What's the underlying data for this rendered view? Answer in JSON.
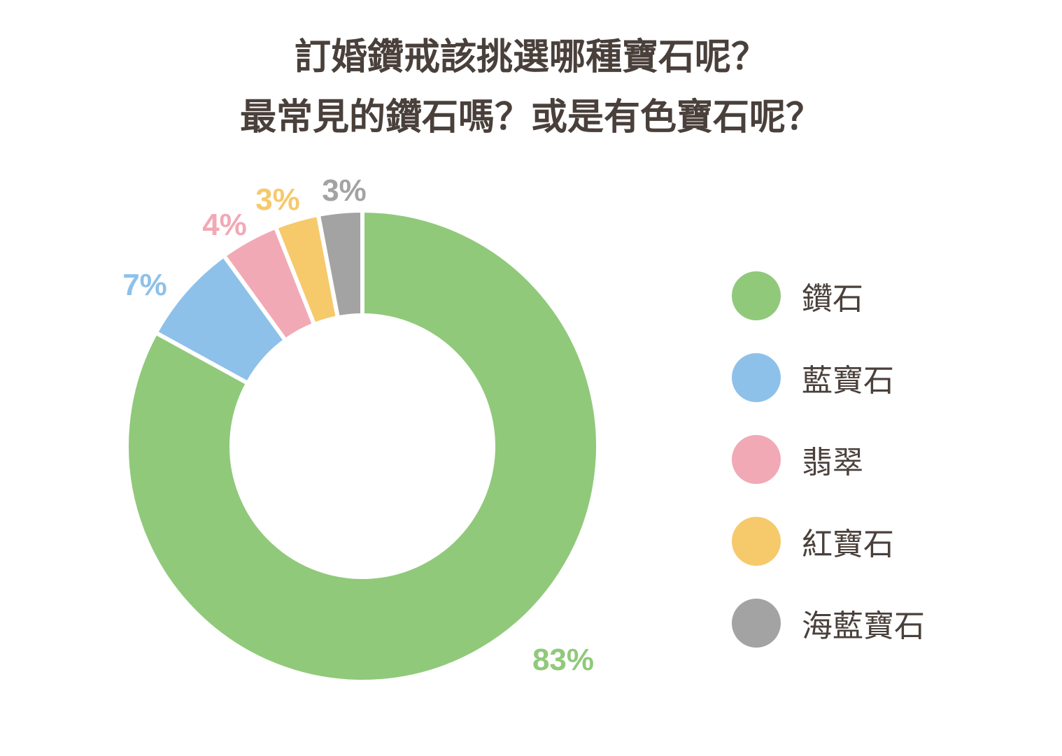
{
  "title": {
    "line1": "訂婚鑽戒該挑選哪種寶石呢？",
    "line2": "最常見的鑽石嗎？或是有色寶石呢？"
  },
  "chart_data": {
    "type": "pie",
    "variant": "donut",
    "title": "訂婚鑽戒該挑選哪種寶石呢？最常見的鑽石嗎？或是有色寶石呢？",
    "categories": [
      "鑽石",
      "藍寶石",
      "翡翠",
      "紅寶石",
      "海藍寶石"
    ],
    "values": [
      83,
      7,
      4,
      3,
      3
    ],
    "labels": [
      "83%",
      "7%",
      "4%",
      "3%",
      "3%"
    ],
    "colors": [
      "#90c97a",
      "#8ec1ea",
      "#f2a9b6",
      "#f6c96b",
      "#a3a3a3"
    ],
    "legend_position": "right"
  },
  "legend": {
    "items": [
      {
        "label": "鑽石",
        "color": "#90c97a"
      },
      {
        "label": "藍寶石",
        "color": "#8ec1ea"
      },
      {
        "label": "翡翠",
        "color": "#f2a9b6"
      },
      {
        "label": "紅寶石",
        "color": "#f6c96b"
      },
      {
        "label": "海藍寶石",
        "color": "#a3a3a3"
      }
    ]
  }
}
